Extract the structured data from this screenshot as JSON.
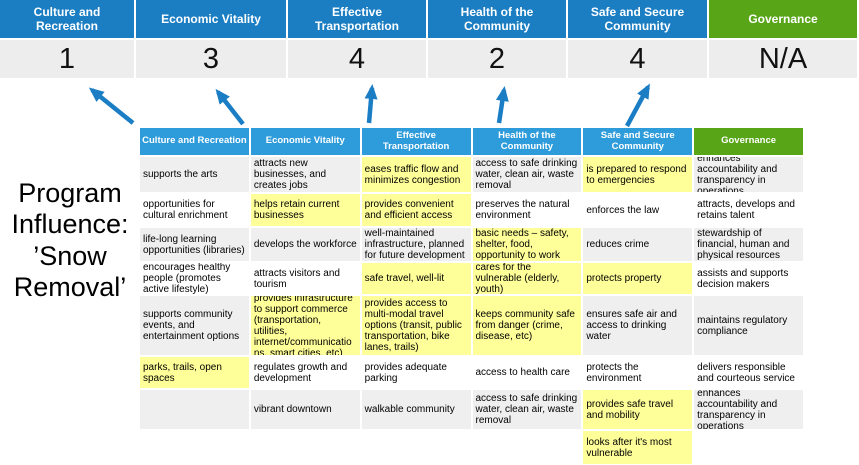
{
  "slide": {
    "program_label_lines": [
      "Program",
      "Influence:",
      "’Snow",
      "Removal’"
    ]
  },
  "priorities": [
    {
      "name": "Culture and Recreation",
      "score": "1",
      "color": "blue"
    },
    {
      "name": "Economic Vitality",
      "score": "3",
      "color": "blue"
    },
    {
      "name": "Effective Transportation",
      "score": "4",
      "color": "blue"
    },
    {
      "name": "Health of the Community",
      "score": "2",
      "color": "blue"
    },
    {
      "name": "Safe and Secure Community",
      "score": "4",
      "color": "blue"
    },
    {
      "name": "Governance",
      "score": "N/A",
      "color": "green"
    }
  ],
  "colors": {
    "band_blue": "#1B7EC3",
    "band_green": "#58A618",
    "header_blue": "#2E9BDB",
    "header_green": "#58A618",
    "highlight_yellow": "#FFFF99",
    "row_gray": "#EFEFEF",
    "score_bg": "#EDEDED",
    "arrow_blue": "#1B7EC5"
  },
  "matrix": {
    "columns": [
      {
        "header": "Culture and Recreation",
        "header_color": "blue",
        "cells": [
          {
            "text": "supports the arts",
            "highlight": false
          },
          {
            "text": "opportunities for cultural enrichment",
            "highlight": false
          },
          {
            "text": "life-long learning opportunities (libraries)",
            "highlight": false
          },
          {
            "text": "encourages healthy people (promotes active lifestyle)",
            "highlight": false
          },
          {
            "text": "supports community events, and entertainment options",
            "highlight": false
          },
          {
            "text": "parks, trails, open spaces",
            "highlight": true
          },
          {
            "text": "",
            "highlight": false
          },
          {
            "text": "",
            "highlight": false
          }
        ]
      },
      {
        "header": "Economic Vitality",
        "header_color": "blue",
        "cells": [
          {
            "text": "attracts new businesses, and creates jobs",
            "highlight": false
          },
          {
            "text": "helps retain current businesses",
            "highlight": true
          },
          {
            "text": "develops the workforce",
            "highlight": false
          },
          {
            "text": "attracts visitors and tourism",
            "highlight": false
          },
          {
            "text": "provides infrastructure to support commerce (transportation, utilities, internet/communications, smart cities, etc)",
            "highlight": true
          },
          {
            "text": "regulates growth and development",
            "highlight": false
          },
          {
            "text": "vibrant downtown",
            "highlight": false
          },
          {
            "text": "",
            "highlight": false
          }
        ]
      },
      {
        "header": "Effective Transportation",
        "header_color": "blue",
        "cells": [
          {
            "text": "eases traffic flow and minimizes congestion",
            "highlight": true
          },
          {
            "text": "provides convenient and efficient access",
            "highlight": true
          },
          {
            "text": "well-maintained infrastructure, planned for future development",
            "highlight": false
          },
          {
            "text": "safe travel, well-lit",
            "highlight": true
          },
          {
            "text": "provides access to multi-modal travel options (transit, public transportation, bike lanes, trails)",
            "highlight": true
          },
          {
            "text": "provides adequate parking",
            "highlight": false
          },
          {
            "text": "walkable community",
            "highlight": false
          },
          {
            "text": "",
            "highlight": false
          }
        ]
      },
      {
        "header": "Health of the Community",
        "header_color": "blue",
        "cells": [
          {
            "text": "access to safe drinking water, clean air, waste removal",
            "highlight": false
          },
          {
            "text": "preserves the natural environment",
            "highlight": false
          },
          {
            "text": "basic needs – safety, shelter, food, opportunity to work",
            "highlight": true
          },
          {
            "text": "cares for the vulnerable (elderly, youth)",
            "highlight": true
          },
          {
            "text": "keeps community safe from danger (crime, disease, etc)",
            "highlight": true
          },
          {
            "text": "access to health care",
            "highlight": false
          },
          {
            "text": "access to safe drinking water, clean air, waste removal",
            "highlight": false
          },
          {
            "text": "",
            "highlight": false
          }
        ]
      },
      {
        "header": "Safe and Secure Community",
        "header_color": "blue",
        "cells": [
          {
            "text": "is prepared to respond to emergencies",
            "highlight": true
          },
          {
            "text": "enforces the law",
            "highlight": false
          },
          {
            "text": "reduces crime",
            "highlight": false
          },
          {
            "text": "protects property",
            "highlight": true
          },
          {
            "text": "ensures safe air and access to drinking water",
            "highlight": false
          },
          {
            "text": "protects the environment",
            "highlight": false
          },
          {
            "text": "provides safe travel and mobility",
            "highlight": true
          },
          {
            "text": "looks after it's most vulnerable",
            "highlight": true
          }
        ]
      },
      {
        "header": "Governance",
        "header_color": "green",
        "cells": [
          {
            "text": "enhances accountability and transparency in operations",
            "highlight": false
          },
          {
            "text": "attracts, develops and retains talent",
            "highlight": false
          },
          {
            "text": "stewardship of financial, human and physical resources",
            "highlight": false
          },
          {
            "text": "assists and supports decision makers",
            "highlight": false
          },
          {
            "text": "maintains regulatory compliance",
            "highlight": false
          },
          {
            "text": "delivers responsible and courteous service",
            "highlight": false
          },
          {
            "text": "enhances accountability and transparency in operations",
            "highlight": false
          },
          {
            "text": "",
            "highlight": false
          }
        ]
      }
    ]
  }
}
